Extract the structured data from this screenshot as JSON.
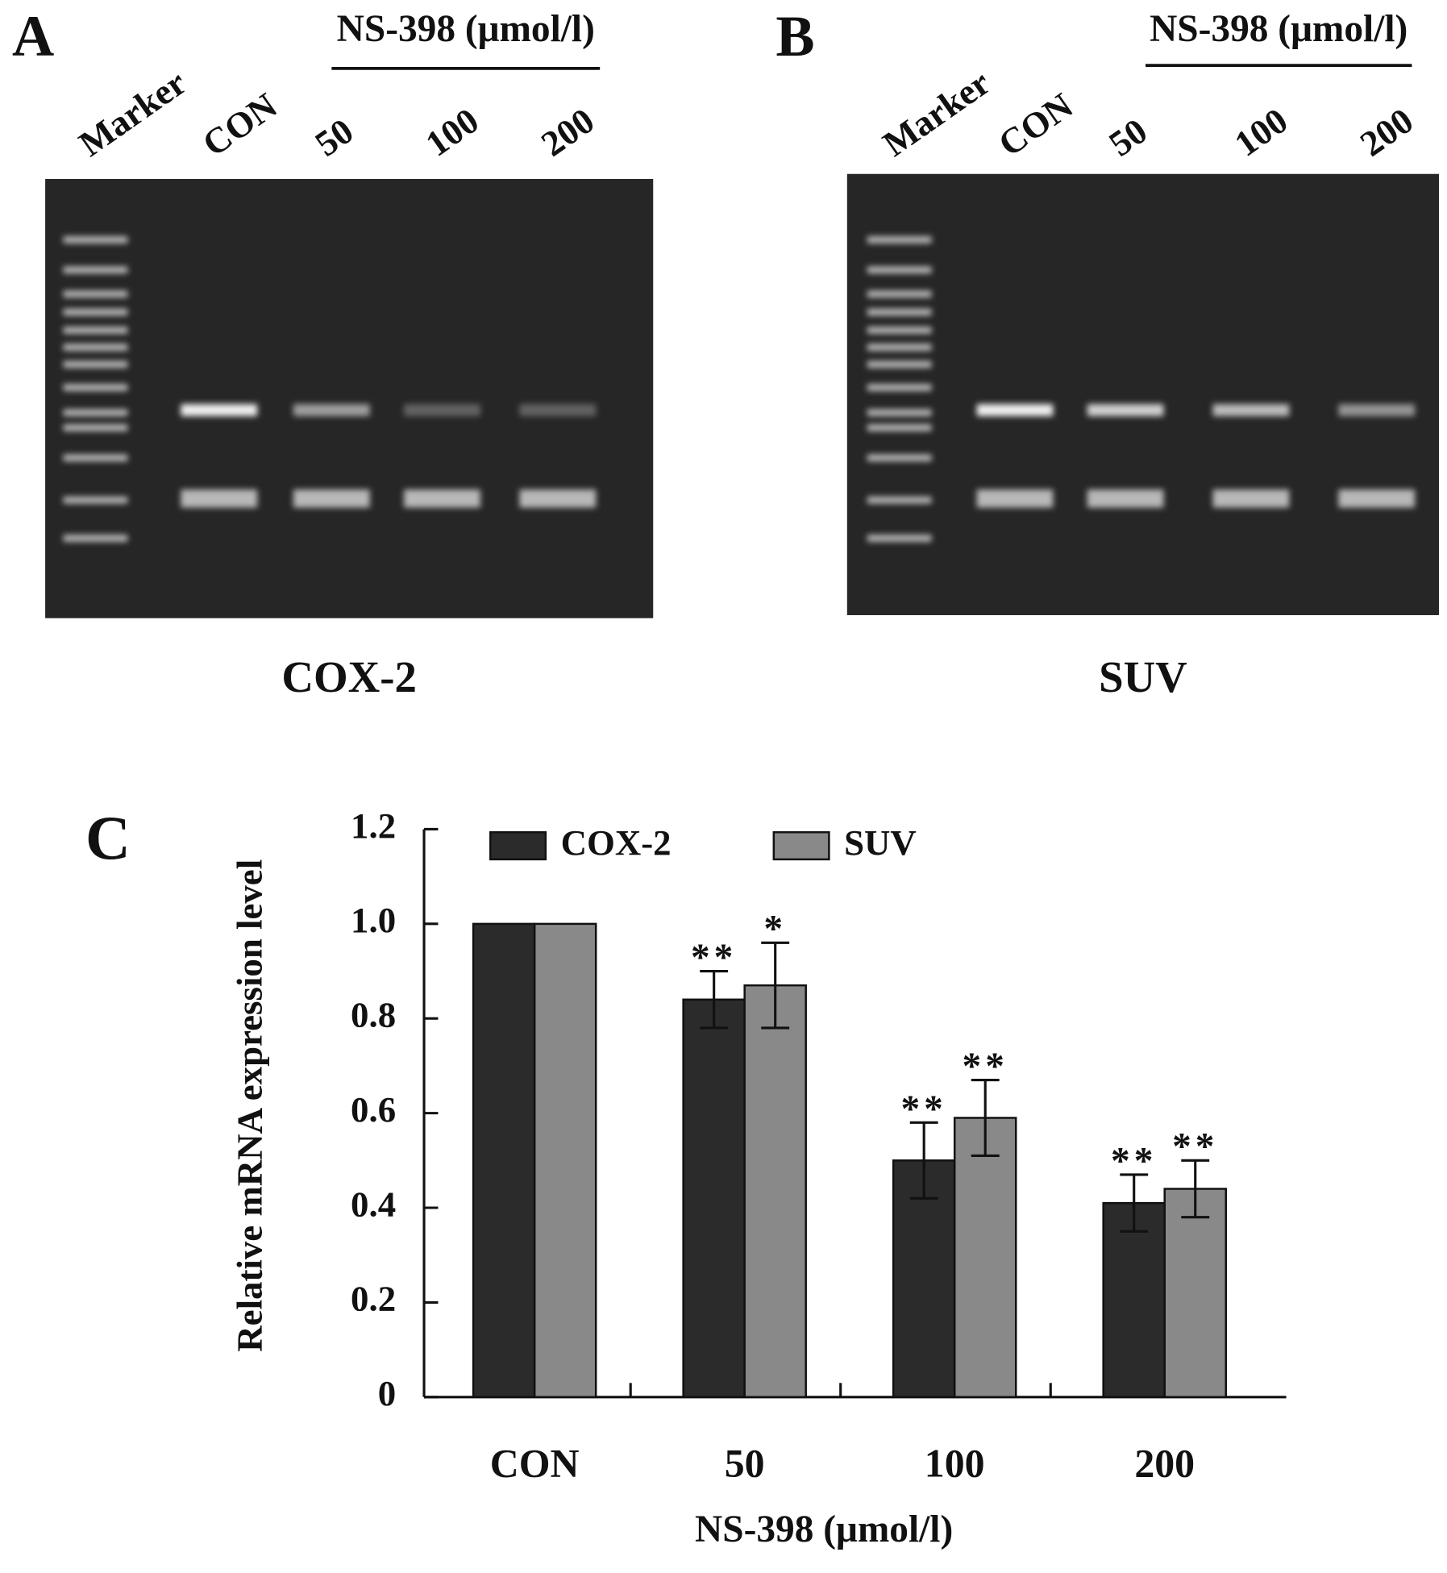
{
  "panel_a": {
    "label": "A",
    "treatment": "NS-398 (μmol/l)",
    "lanes": [
      "Marker",
      "CON",
      "50",
      "100",
      "200"
    ],
    "caption": "COX-2"
  },
  "panel_b": {
    "label": "B",
    "treatment": "NS-398 (μmol/l)",
    "lanes": [
      "Marker",
      "CON",
      "50",
      "100",
      "200"
    ],
    "caption": "SUV"
  },
  "chart_data": {
    "type": "bar",
    "panel_label": "C",
    "x_label": "NS-398 (μmol/l)",
    "y_label": "Relative mRNA expression level",
    "categories": [
      "CON",
      "50",
      "100",
      "200"
    ],
    "series": [
      {
        "name": "COX-2",
        "color": "#2b2b2b",
        "values": [
          1.0,
          0.84,
          0.5,
          0.41
        ],
        "errors": [
          null,
          0.06,
          0.08,
          0.06
        ],
        "significance": [
          null,
          "**",
          "**",
          "**"
        ]
      },
      {
        "name": "SUV",
        "color": "#898989",
        "values": [
          1.0,
          0.87,
          0.59,
          0.44
        ],
        "errors": [
          null,
          0.09,
          0.08,
          0.06
        ],
        "significance": [
          null,
          "*",
          "**",
          "**"
        ]
      }
    ],
    "ylim": [
      0,
      1.2
    ],
    "yticks": [
      0,
      0.2,
      0.4,
      0.6,
      0.8,
      {
        "value": 1.0,
        "label": "1.0"
      },
      1.2
    ]
  }
}
